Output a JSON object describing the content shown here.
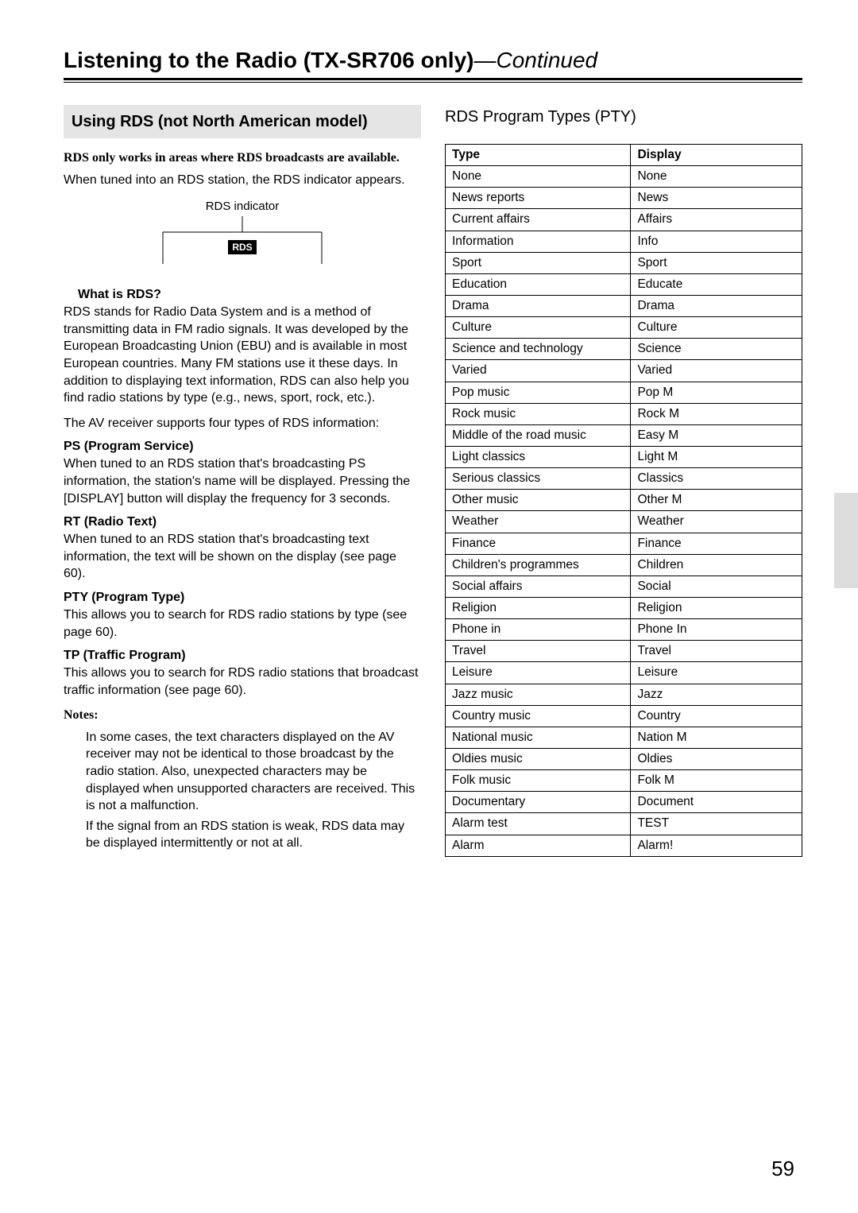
{
  "header": {
    "title_main": "Listening to the Radio (TX-SR706 only)",
    "title_continued": "—Continued"
  },
  "left": {
    "section_heading": "Using RDS (not North American model)",
    "availability_note": "RDS only works in areas where RDS broadcasts are available.",
    "tuned_text": "When tuned into an RDS station, the RDS indicator appears.",
    "diagram": {
      "label": "RDS indicator",
      "badge": "RDS"
    },
    "what_is_heading": "What is RDS?",
    "what_is_body": "RDS stands for Radio Data System and is a method of transmitting data in FM radio signals. It was developed by the European Broadcasting Union (EBU) and is available in most European countries. Many FM stations use it these days. In addition to displaying text information, RDS can also help you find radio stations by type (e.g., news, sport, rock, etc.).",
    "supports_text": "The AV receiver supports four types of RDS information:",
    "ps_heading": "PS (Program Service)",
    "ps_body": "When tuned to an RDS station that's broadcasting PS information, the station's name will be displayed. Pressing the [DISPLAY] button will display the frequency for 3 seconds.",
    "rt_heading": "RT (Radio Text)",
    "rt_body": "When tuned to an RDS station that's broadcasting text information, the text will be shown on the display (see page 60).",
    "pty_heading": "PTY (Program Type)",
    "pty_body": "This allows you to search for RDS radio stations by type (see page 60).",
    "tp_heading": "TP (Traffic Program)",
    "tp_body": "This allows you to search for RDS radio stations that broadcast traffic information (see page 60).",
    "notes_heading": "Notes:",
    "notes": [
      "In some cases, the text characters displayed on the AV receiver may not be identical to those broadcast by the radio station. Also, unexpected characters may be displayed when unsupported characters are received. This is not a malfunction.",
      "If the signal from an RDS station is weak, RDS data may be displayed intermittently or not at all."
    ]
  },
  "right": {
    "heading": "RDS Program Types (PTY)",
    "columns": {
      "type": "Type",
      "display": "Display"
    },
    "rows": [
      {
        "type": "None",
        "display": "None"
      },
      {
        "type": "News reports",
        "display": "News"
      },
      {
        "type": "Current affairs",
        "display": "Affairs"
      },
      {
        "type": "Information",
        "display": "Info"
      },
      {
        "type": "Sport",
        "display": "Sport"
      },
      {
        "type": "Education",
        "display": "Educate"
      },
      {
        "type": "Drama",
        "display": "Drama"
      },
      {
        "type": "Culture",
        "display": "Culture"
      },
      {
        "type": "Science and technology",
        "display": "Science"
      },
      {
        "type": "Varied",
        "display": "Varied"
      },
      {
        "type": "Pop music",
        "display": "Pop M"
      },
      {
        "type": "Rock music",
        "display": "Rock M"
      },
      {
        "type": "Middle of the road music",
        "display": "Easy M"
      },
      {
        "type": "Light classics",
        "display": "Light M"
      },
      {
        "type": "Serious classics",
        "display": "Classics"
      },
      {
        "type": "Other music",
        "display": "Other M"
      },
      {
        "type": "Weather",
        "display": "Weather"
      },
      {
        "type": "Finance",
        "display": "Finance"
      },
      {
        "type": "Children's programmes",
        "display": "Children"
      },
      {
        "type": "Social affairs",
        "display": "Social"
      },
      {
        "type": "Religion",
        "display": "Religion"
      },
      {
        "type": "Phone in",
        "display": "Phone In"
      },
      {
        "type": "Travel",
        "display": "Travel"
      },
      {
        "type": "Leisure",
        "display": "Leisure"
      },
      {
        "type": "Jazz music",
        "display": "Jazz"
      },
      {
        "type": "Country music",
        "display": "Country"
      },
      {
        "type": "National music",
        "display": "Nation M"
      },
      {
        "type": "Oldies music",
        "display": "Oldies"
      },
      {
        "type": "Folk music",
        "display": "Folk M"
      },
      {
        "type": "Documentary",
        "display": "Document"
      },
      {
        "type": "Alarm test",
        "display": "TEST"
      },
      {
        "type": "Alarm",
        "display": "Alarm!"
      }
    ]
  },
  "page_number": "59"
}
